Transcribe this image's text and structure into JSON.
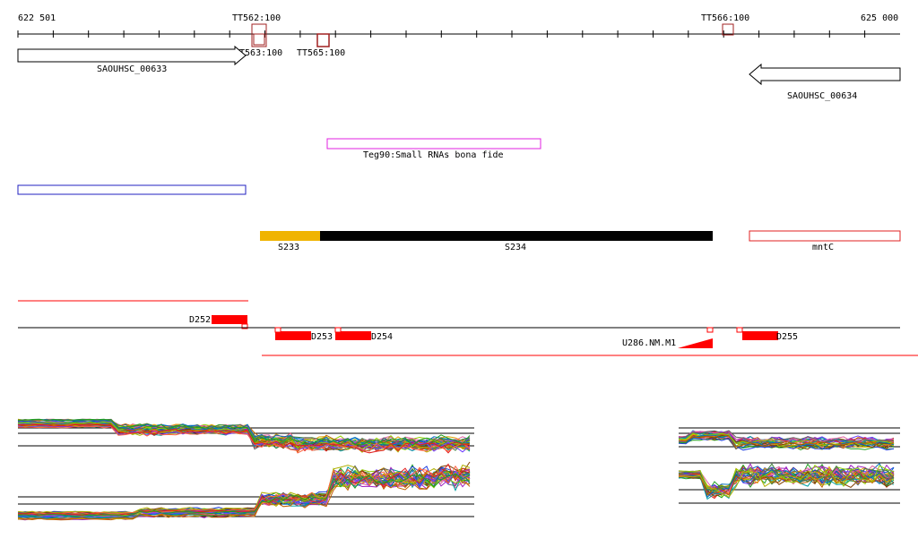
{
  "ruler": {
    "start_label": "622 501",
    "end_label": "625 000"
  },
  "terminators": {
    "tt562": "TT562:100",
    "tt563": "TT563:100",
    "tt565": "TT565:100",
    "tt566": "TT566:100"
  },
  "genes": {
    "left": "SAOUHSC_00633",
    "right": "SAOUHSC_00634",
    "mntc": "mntC"
  },
  "srna": {
    "label": "Teg90:Small RNAs bona fide"
  },
  "segments": {
    "s233": "S233",
    "s234": "S234"
  },
  "transcripts": {
    "d252": "D252",
    "d253": "D253",
    "d254": "D254",
    "d255": "D255",
    "u286": "U286.NM.M1"
  },
  "colors": {
    "segment_s233": "#f0b400",
    "segment_s234": "#000000",
    "transcript_red": "#ff0000",
    "srna_magenta": "#e020e0",
    "blue_feature": "#2020c0",
    "terminator_brown": "#a02020"
  }
}
